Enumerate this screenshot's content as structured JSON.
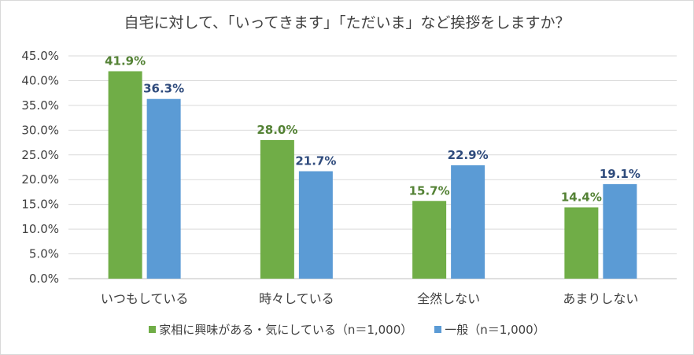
{
  "chart_data": {
    "type": "bar",
    "title": "自宅に対して、「いってきます」「ただいま」など挨拶をしますか？",
    "categories": [
      "いつもしている",
      "時々している",
      "全然しない",
      "あまりしない"
    ],
    "series": [
      {
        "name": "家相に興味がある・気にしている（n＝1,000）",
        "values": [
          41.9,
          28.0,
          15.7,
          14.4
        ],
        "color": "#70ad47",
        "label_color": "#548235"
      },
      {
        "name": "一般（n＝1,000）",
        "values": [
          36.3,
          21.7,
          22.9,
          19.1
        ],
        "color": "#5b9bd5",
        "label_color": "#2f4b7c"
      }
    ],
    "value_labels": [
      [
        "41.9%",
        "28.0%",
        "15.7%",
        "14.4%"
      ],
      [
        "36.3%",
        "21.7%",
        "22.9%",
        "19.1%"
      ]
    ],
    "yticks": [
      "0.0%",
      "5.0%",
      "10.0%",
      "15.0%",
      "20.0%",
      "25.0%",
      "30.0%",
      "35.0%",
      "40.0%",
      "45.0%"
    ],
    "ylim": [
      0,
      45
    ],
    "grid": true,
    "legend_position": "bottom"
  }
}
